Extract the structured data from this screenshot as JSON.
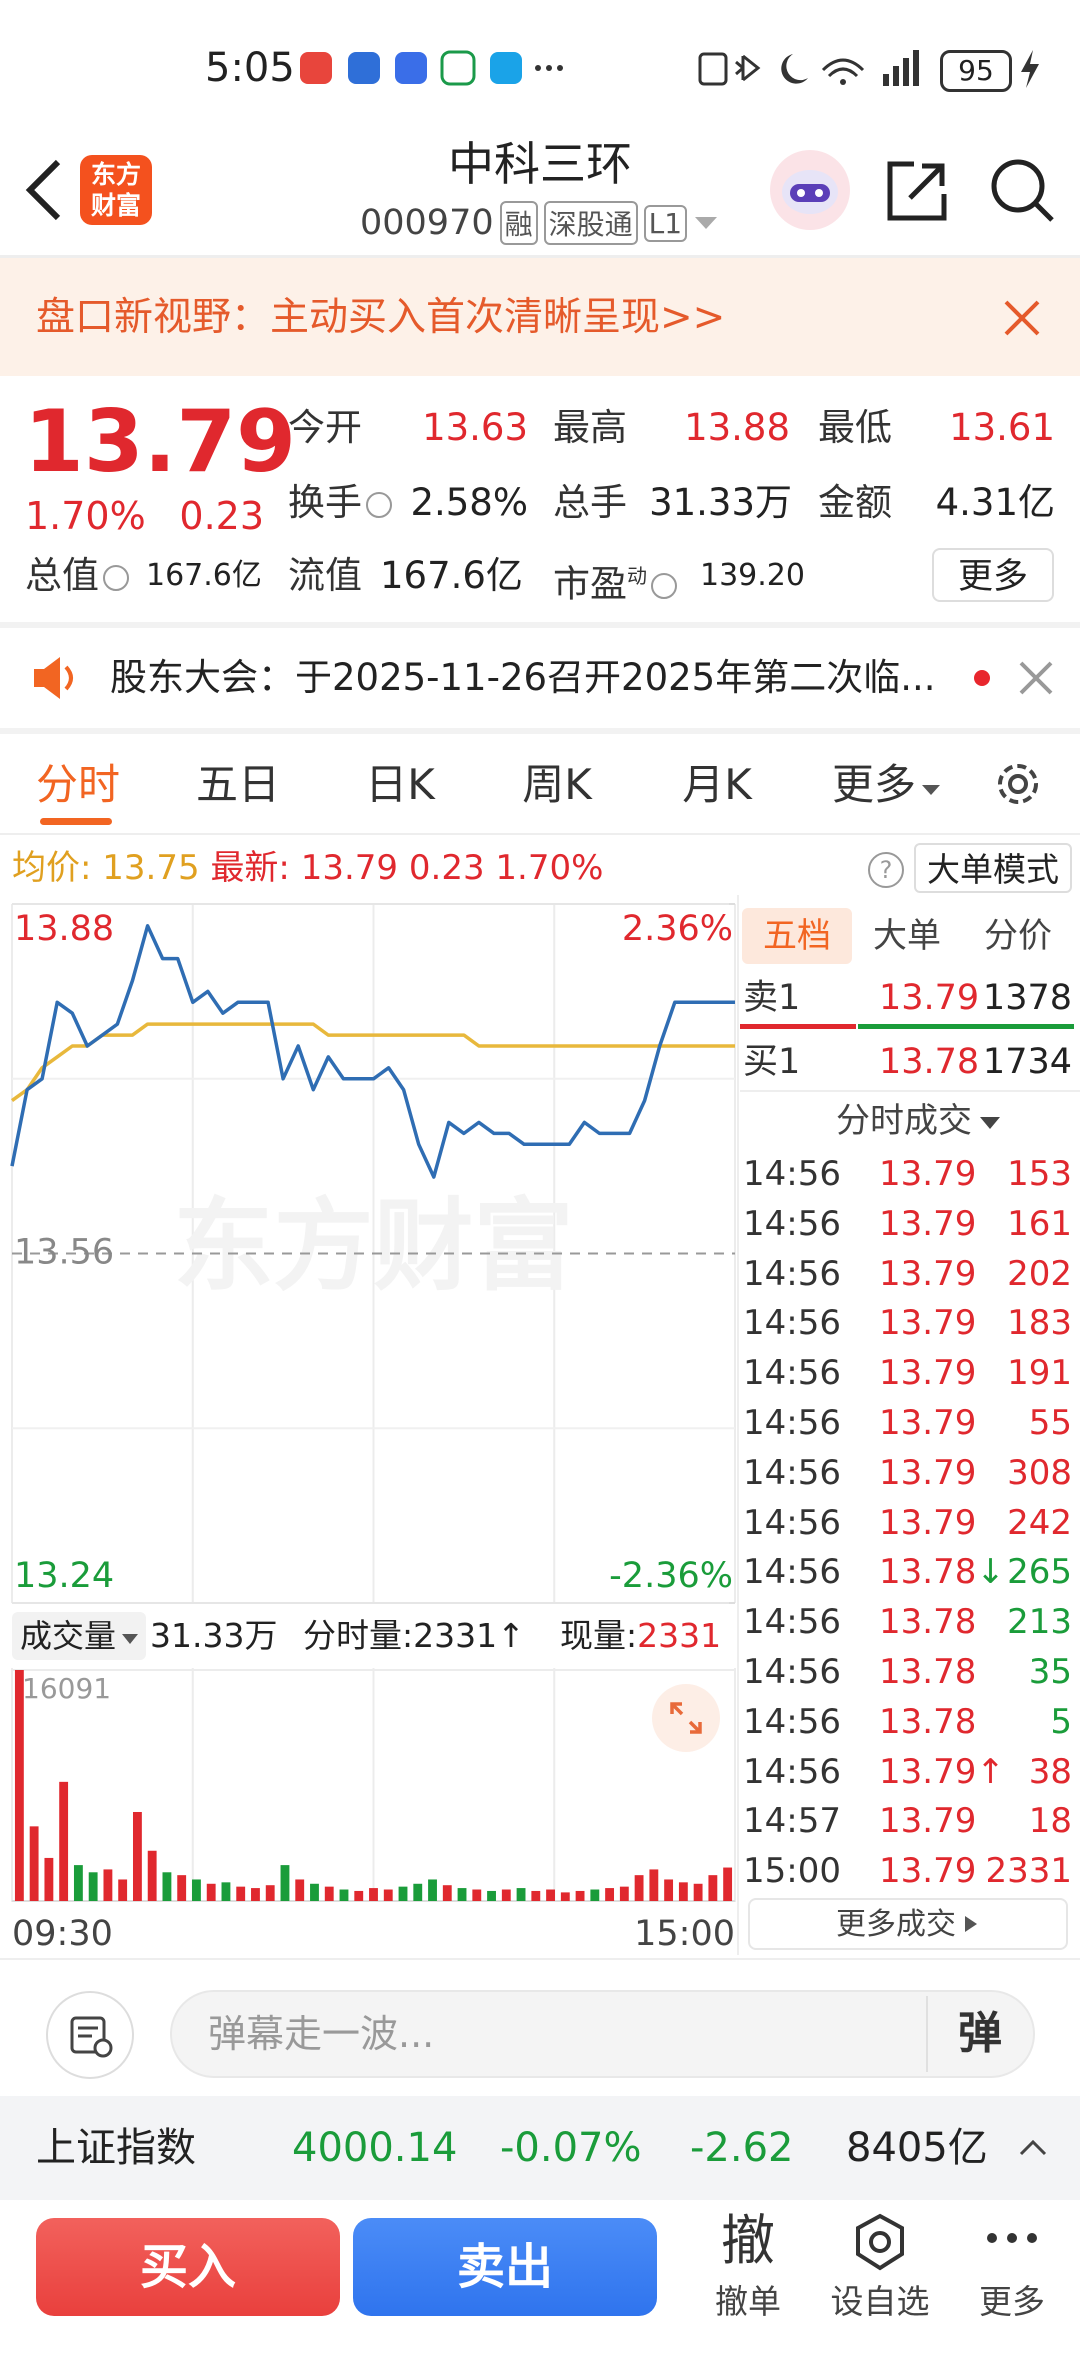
{
  "status_bar": {
    "time": "5:05",
    "battery": "95"
  },
  "header": {
    "logo": "东方财富",
    "title": "中科三环",
    "code": "000970",
    "badges": [
      "融",
      "深股通",
      "L1"
    ]
  },
  "banner": {
    "text": "盘口新视野：主动买入首次清晰呈现>>"
  },
  "quote": {
    "price": 13.79,
    "change_pct": "1.70%",
    "change": 0.23,
    "stats": [
      {
        "label": "今开",
        "value": 13.63
      },
      {
        "label": "最高",
        "value": 13.88
      },
      {
        "label": "最低",
        "value": 13.61
      },
      {
        "label": "换手",
        "value": "2.58%"
      },
      {
        "label": "总手",
        "value": "31.33万"
      },
      {
        "label": "金额",
        "value": "4.31亿"
      },
      {
        "label": "总值",
        "value": "167.6亿"
      },
      {
        "label": "流值",
        "value": "167.6亿"
      },
      {
        "label": "市盈",
        "sup": "动",
        "value": "139.20"
      }
    ],
    "more": "更多"
  },
  "notice": {
    "text": "股东大会：于2025-11-26召开2025年第二次临..."
  },
  "tabs": [
    "分时",
    "五日",
    "日K",
    "周K",
    "月K",
    "更多"
  ],
  "info_line": {
    "avg_label": "均价:",
    "avg": 13.75,
    "latest_label": "最新:",
    "latest": 13.79,
    "change": 0.23,
    "change_pct": "1.70%",
    "mode_button": "大单模式"
  },
  "chart_data": [
    {
      "type": "line",
      "watermark": "东方财富",
      "categories": [
        "09:30",
        null,
        null,
        null,
        null,
        null,
        null,
        null,
        null,
        null,
        null,
        null,
        null,
        null,
        null,
        null,
        null,
        null,
        null,
        null,
        null,
        null,
        null,
        null,
        null,
        null,
        null,
        null,
        null,
        null,
        null,
        null,
        null,
        null,
        null,
        null,
        null,
        null,
        null,
        null,
        null,
        null,
        null,
        null,
        null,
        null,
        null,
        null,
        "15:00"
      ],
      "series": [
        {
          "color": "#2f6db3",
          "values": [
            13.64,
            13.71,
            13.72,
            13.79,
            13.78,
            13.75,
            13.76,
            13.77,
            13.81,
            13.86,
            13.83,
            13.83,
            13.79,
            13.8,
            13.78,
            13.79,
            13.79,
            13.79,
            13.72,
            13.75,
            13.71,
            13.74,
            13.72,
            13.72,
            13.72,
            13.73,
            13.71,
            13.66,
            13.63,
            13.68,
            13.67,
            13.68,
            13.67,
            13.67,
            13.66,
            13.66,
            13.66,
            13.66,
            13.68,
            13.67,
            13.67,
            13.67,
            13.7,
            13.75,
            13.79,
            13.79,
            13.79,
            13.79,
            13.79
          ]
        },
        {
          "color": "#e8b83c",
          "values": [
            13.7,
            13.71,
            13.73,
            13.74,
            13.75,
            13.75,
            13.76,
            13.76,
            13.76,
            13.77,
            13.77,
            13.77,
            13.77,
            13.77,
            13.77,
            13.77,
            13.77,
            13.77,
            13.77,
            13.77,
            13.77,
            13.76,
            13.76,
            13.76,
            13.76,
            13.76,
            13.76,
            13.76,
            13.76,
            13.76,
            13.76,
            13.75,
            13.75,
            13.75,
            13.75,
            13.75,
            13.75,
            13.75,
            13.75,
            13.75,
            13.75,
            13.75,
            13.75,
            13.75,
            13.75,
            13.75,
            13.75,
            13.75,
            13.75
          ]
        }
      ],
      "ylim": [
        13.24,
        13.88
      ],
      "yticks": [
        13.24,
        13.56,
        13.88
      ],
      "y2lim": [
        -2.36,
        2.36
      ],
      "y2ticks": [
        {
          "value": -2.36,
          "label": "-2.36%"
        },
        {
          "value": 2.36,
          "label": "2.36%"
        }
      ],
      "up_color": "#e0282e",
      "down_color": "#1a9c3a"
    },
    {
      "type": "bar",
      "values": [
        16091,
        5200,
        3000,
        8300,
        2500,
        2000,
        2200,
        1500,
        6200,
        3500,
        2000,
        1800,
        1500,
        1200,
        1300,
        1000,
        900,
        1100,
        2500,
        1500,
        1200,
        1000,
        800,
        700,
        900,
        800,
        1000,
        1200,
        1500,
        1100,
        900,
        800,
        700,
        800,
        900,
        700,
        800,
        600,
        700,
        800,
        900,
        1000,
        1800,
        2200,
        1500,
        1300,
        1200,
        1800,
        2331
      ],
      "ylim": [
        0,
        16091
      ],
      "yticks": [
        16091
      ],
      "up_color": "#e0282e",
      "down_color": "#1a9c3a"
    }
  ],
  "volume_bar": {
    "label": "成交量",
    "total": "31.33万",
    "minute_label": "分时量:",
    "minute": 2331,
    "minute_arrow": "↑",
    "now_label": "现量:",
    "now": 2331
  },
  "order_book": {
    "tabs": [
      "五档",
      "大单",
      "分价"
    ],
    "price_color": "#e0282e",
    "rows": [
      {
        "side": "卖1",
        "price": 13.79,
        "volume": 1378
      },
      {
        "side": "买1",
        "price": 13.78,
        "volume": 1734
      }
    ],
    "trades_title": "分时成交",
    "trades": [
      {
        "time": "14:56",
        "price": 13.79,
        "volume": 153,
        "color": "#e0282e"
      },
      {
        "time": "14:56",
        "price": 13.79,
        "volume": 161,
        "color": "#e0282e"
      },
      {
        "time": "14:56",
        "price": 13.79,
        "volume": 202,
        "color": "#e0282e"
      },
      {
        "time": "14:56",
        "price": 13.79,
        "volume": 183,
        "color": "#e0282e"
      },
      {
        "time": "14:56",
        "price": 13.79,
        "volume": 191,
        "color": "#e0282e"
      },
      {
        "time": "14:56",
        "price": 13.79,
        "volume": 55,
        "color": "#e0282e"
      },
      {
        "time": "14:56",
        "price": 13.79,
        "volume": 308,
        "color": "#e0282e"
      },
      {
        "time": "14:56",
        "price": 13.79,
        "volume": 242,
        "color": "#e0282e"
      },
      {
        "time": "14:56",
        "price": 13.78,
        "arrow": "↓",
        "volume": 265,
        "color": "#1a9c3a"
      },
      {
        "time": "14:56",
        "price": 13.78,
        "volume": 213,
        "color": "#1a9c3a"
      },
      {
        "time": "14:56",
        "price": 13.78,
        "volume": 35,
        "color": "#1a9c3a"
      },
      {
        "time": "14:56",
        "price": 13.78,
        "volume": 5,
        "color": "#1a9c3a"
      },
      {
        "time": "14:56",
        "price": 13.79,
        "arrow": "↑",
        "volume": 38,
        "color": "#e0282e"
      },
      {
        "time": "14:57",
        "price": 13.79,
        "volume": 18,
        "color": "#e0282e"
      },
      {
        "time": "15:00",
        "price": 13.79,
        "volume": 2331,
        "color": "#e0282e"
      }
    ],
    "more": "更多成交"
  },
  "comment": {
    "placeholder": "弹幕走一波...",
    "button": "弹"
  },
  "index_bar": {
    "name": "上证指数",
    "value": 4000.14,
    "change_pct": "-0.07%",
    "change": -2.62,
    "amount": "8405亿"
  },
  "actions": {
    "buy": "买入",
    "sell": "卖出",
    "items": [
      {
        "icon": "撤",
        "label": "撤单"
      },
      {
        "label": "设自选"
      },
      {
        "label": "更多"
      }
    ]
  }
}
